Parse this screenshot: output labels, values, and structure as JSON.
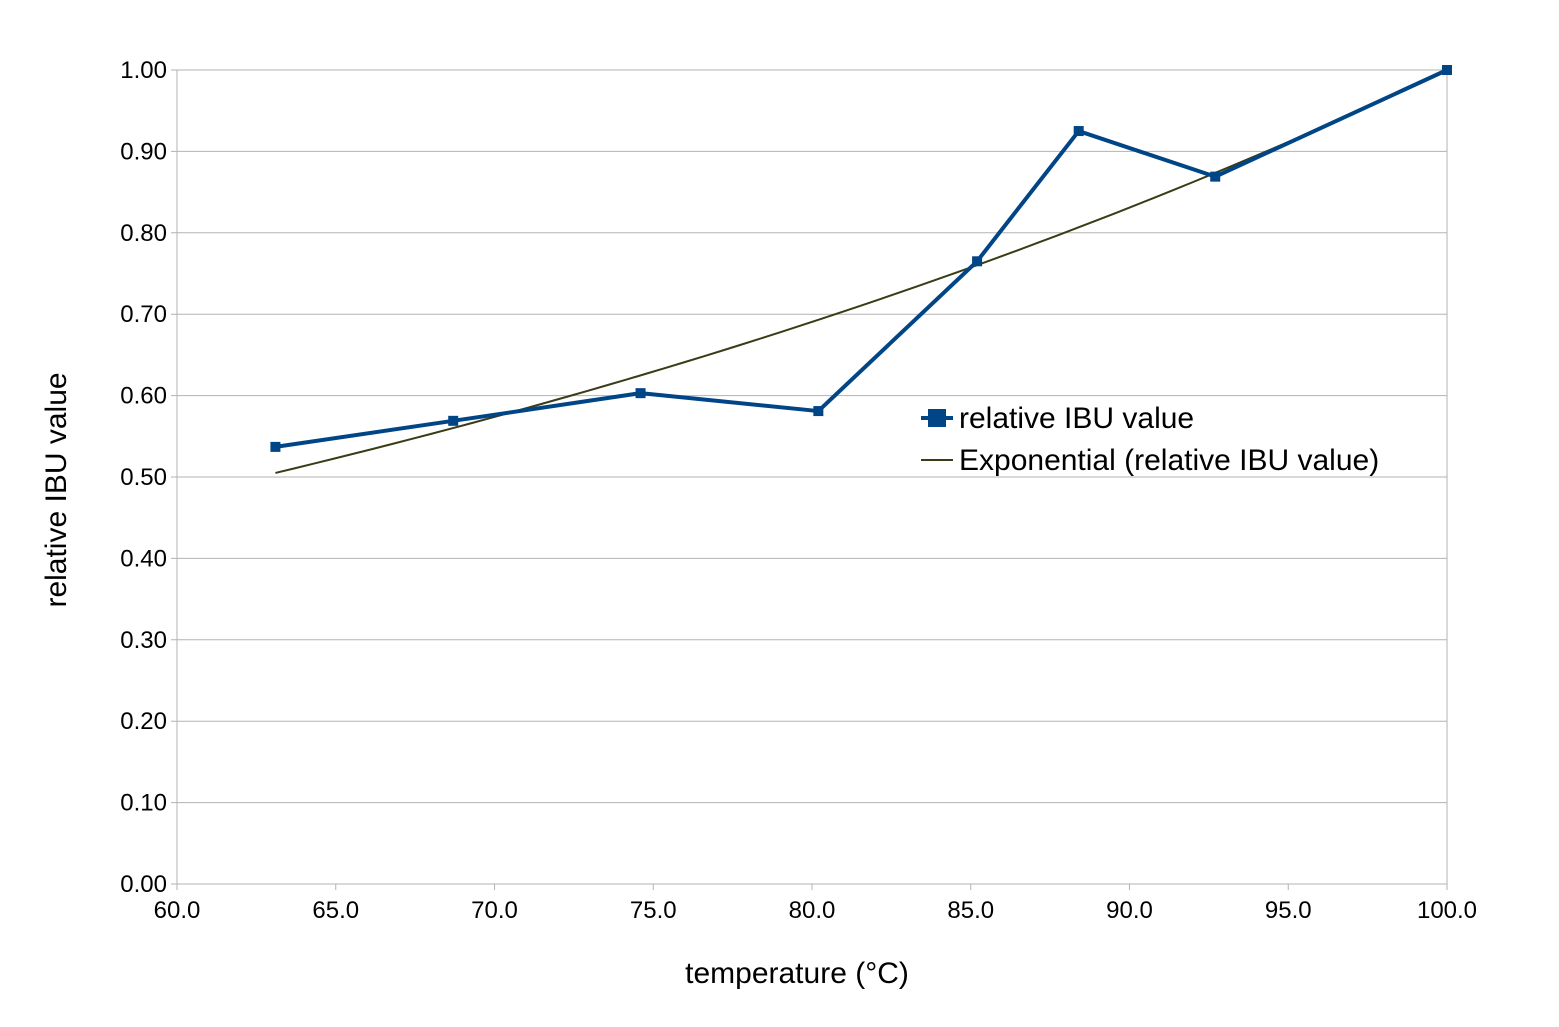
{
  "chart_data": {
    "type": "line",
    "title": "",
    "xlabel": "temperature (°C)",
    "ylabel": "relative IBU value",
    "xlim": [
      60,
      100
    ],
    "ylim": [
      0,
      1
    ],
    "x_ticks": [
      "60.0",
      "65.0",
      "70.0",
      "75.0",
      "80.0",
      "85.0",
      "90.0",
      "95.0",
      "100.0"
    ],
    "y_ticks": [
      "0.00",
      "0.10",
      "0.20",
      "0.30",
      "0.40",
      "0.50",
      "0.60",
      "0.70",
      "0.80",
      "0.90",
      "1.00"
    ],
    "grid": "horizontal",
    "legend_position": "right-center",
    "series": [
      {
        "name": "relative IBU value",
        "color": "#004586",
        "marker": "square",
        "points": [
          {
            "x": 63.1,
            "y": 0.537
          },
          {
            "x": 68.7,
            "y": 0.569
          },
          {
            "x": 74.6,
            "y": 0.603
          },
          {
            "x": 80.2,
            "y": 0.581
          },
          {
            "x": 85.2,
            "y": 0.765
          },
          {
            "x": 88.4,
            "y": 0.925
          },
          {
            "x": 92.7,
            "y": 0.869
          },
          {
            "x": 100.0,
            "y": 1.0
          }
        ]
      },
      {
        "name": "Exponential (relative IBU value)",
        "color": "#3b3b16",
        "kind": "trendline",
        "fit": "exponential",
        "points": [
          {
            "x": 63.1,
            "y": 0.505
          },
          {
            "x": 100.0,
            "y": 1.0
          }
        ]
      }
    ]
  }
}
